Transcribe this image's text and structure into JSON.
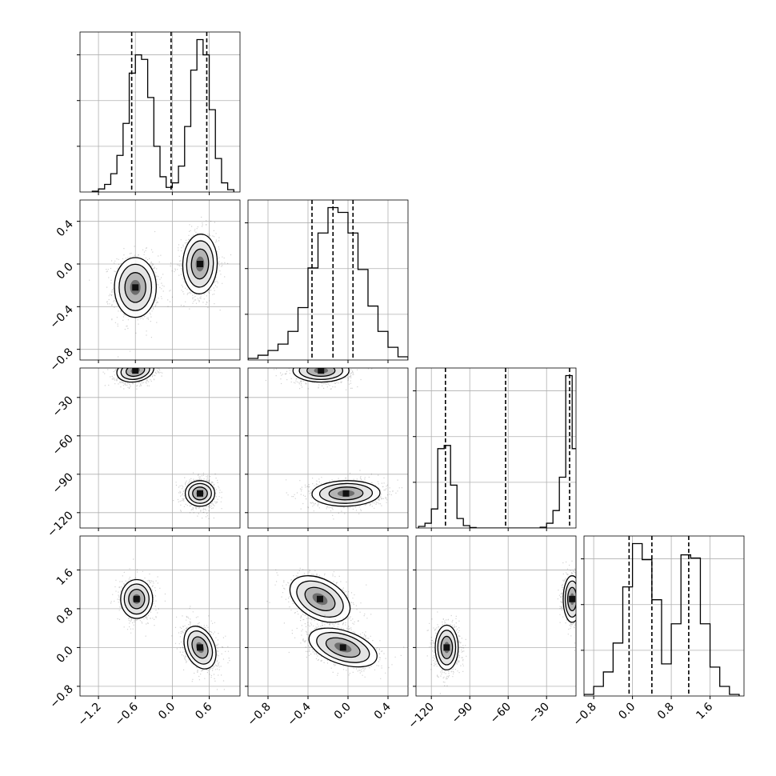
{
  "chart_data": {
    "type": "corner",
    "parameters": 4,
    "colors": {
      "line": "#000000",
      "grid": "#b0b0b0",
      "points": "#000000",
      "background": "#ffffff"
    },
    "grid": true,
    "diagonal": [
      {
        "type": "histogram",
        "x_range": [
          -1.5,
          1.1
        ],
        "y_ticks_shown": 3,
        "quantile_lines": [
          -0.66,
          -0.02,
          0.56
        ],
        "bins": [
          {
            "x": -1.25,
            "count": 0.005
          },
          {
            "x": -1.15,
            "count": 0.02
          },
          {
            "x": -1.05,
            "count": 0.05
          },
          {
            "x": -0.95,
            "count": 0.12
          },
          {
            "x": -0.85,
            "count": 0.24
          },
          {
            "x": -0.75,
            "count": 0.45
          },
          {
            "x": -0.65,
            "count": 0.78
          },
          {
            "x": -0.55,
            "count": 0.9
          },
          {
            "x": -0.45,
            "count": 0.87
          },
          {
            "x": -0.35,
            "count": 0.62
          },
          {
            "x": -0.25,
            "count": 0.3
          },
          {
            "x": -0.15,
            "count": 0.1
          },
          {
            "x": -0.05,
            "count": 0.03
          },
          {
            "x": 0.05,
            "count": 0.06
          },
          {
            "x": 0.15,
            "count": 0.17
          },
          {
            "x": 0.25,
            "count": 0.43
          },
          {
            "x": 0.35,
            "count": 0.8
          },
          {
            "x": 0.45,
            "count": 1.0
          },
          {
            "x": 0.55,
            "count": 0.9
          },
          {
            "x": 0.65,
            "count": 0.54
          },
          {
            "x": 0.75,
            "count": 0.22
          },
          {
            "x": 0.85,
            "count": 0.06
          },
          {
            "x": 0.95,
            "count": 0.015
          }
        ]
      },
      {
        "type": "histogram",
        "x_range": [
          -1.0,
          0.6
        ],
        "x_ticks": [
          -0.8,
          -0.4,
          0.0,
          0.4
        ],
        "x_tick_labels": [
          "−0.8",
          "−0.4",
          "0.0",
          "0.4"
        ],
        "y_ticks_shown": 3,
        "quantile_lines": [
          -0.36,
          -0.15,
          0.05
        ],
        "bins": [
          {
            "x": -0.95,
            "count": 0.01
          },
          {
            "x": -0.85,
            "count": 0.03
          },
          {
            "x": -0.75,
            "count": 0.06
          },
          {
            "x": -0.65,
            "count": 0.1
          },
          {
            "x": -0.55,
            "count": 0.18
          },
          {
            "x": -0.45,
            "count": 0.33
          },
          {
            "x": -0.35,
            "count": 0.58
          },
          {
            "x": -0.25,
            "count": 0.8
          },
          {
            "x": -0.15,
            "count": 0.96
          },
          {
            "x": -0.05,
            "count": 0.93
          },
          {
            "x": 0.05,
            "count": 0.8
          },
          {
            "x": 0.15,
            "count": 0.57
          },
          {
            "x": 0.25,
            "count": 0.34
          },
          {
            "x": 0.35,
            "count": 0.18
          },
          {
            "x": 0.45,
            "count": 0.08
          },
          {
            "x": 0.55,
            "count": 0.02
          }
        ]
      },
      {
        "type": "histogram",
        "x_range": [
          -132,
          -7
        ],
        "x_ticks": [
          -120,
          -90,
          -60,
          -30
        ],
        "x_tick_labels": [
          "−120",
          "−90",
          "−60",
          "−30"
        ],
        "y_ticks_shown": 3,
        "quantile_lines": [
          -109,
          -62,
          -12
        ],
        "bins": [
          {
            "x": -127.5,
            "count": 0.01
          },
          {
            "x": -122.5,
            "count": 0.03
          },
          {
            "x": -117.5,
            "count": 0.12
          },
          {
            "x": -112.5,
            "count": 0.5
          },
          {
            "x": -107.5,
            "count": 0.52
          },
          {
            "x": -102.5,
            "count": 0.27
          },
          {
            "x": -97.5,
            "count": 0.06
          },
          {
            "x": -92.5,
            "count": 0.015
          },
          {
            "x": -87.5,
            "count": 0.003
          },
          {
            "x": -32.5,
            "count": 0.005
          },
          {
            "x": -27.5,
            "count": 0.03
          },
          {
            "x": -22.5,
            "count": 0.11
          },
          {
            "x": -17.5,
            "count": 0.32
          },
          {
            "x": -12.5,
            "count": 0.96
          },
          {
            "x": -7.5,
            "count": 0.5
          }
        ]
      },
      {
        "type": "histogram",
        "x_range": [
          -1.0,
          2.3
        ],
        "x_ticks": [
          -0.8,
          0.0,
          0.8,
          1.6
        ],
        "x_tick_labels": [
          "−0.8",
          "0.0",
          "0.8",
          "1.6"
        ],
        "y_ticks_shown": 3,
        "quantile_lines": [
          -0.07,
          0.4,
          1.16
        ],
        "bins": [
          {
            "x": -0.9,
            "count": 0.01
          },
          {
            "x": -0.7,
            "count": 0.06
          },
          {
            "x": -0.5,
            "count": 0.15
          },
          {
            "x": -0.3,
            "count": 0.33
          },
          {
            "x": -0.1,
            "count": 0.68
          },
          {
            "x": 0.1,
            "count": 0.95
          },
          {
            "x": 0.3,
            "count": 0.85
          },
          {
            "x": 0.5,
            "count": 0.6
          },
          {
            "x": 0.7,
            "count": 0.2
          },
          {
            "x": 0.9,
            "count": 0.45
          },
          {
            "x": 1.1,
            "count": 0.88
          },
          {
            "x": 1.3,
            "count": 0.86
          },
          {
            "x": 1.5,
            "count": 0.45
          },
          {
            "x": 1.7,
            "count": 0.18
          },
          {
            "x": 1.9,
            "count": 0.06
          },
          {
            "x": 2.1,
            "count": 0.01
          }
        ]
      }
    ],
    "pairs": [
      {
        "row": 1,
        "col": 0,
        "x_range": [
          -1.5,
          1.1
        ],
        "y_range": [
          -0.9,
          0.6
        ],
        "y_ticks": [
          -0.8,
          -0.4,
          0.0,
          0.4
        ],
        "y_tick_labels": [
          "−0.8",
          "−0.4",
          "0.0",
          "0.4"
        ],
        "clusters": [
          {
            "cx": -0.6,
            "cy": -0.22,
            "sx": 0.17,
            "sy": 0.14,
            "rho": 0.0
          },
          {
            "cx": 0.45,
            "cy": 0.0,
            "sx": 0.14,
            "sy": 0.14,
            "rho": 0.05
          }
        ]
      },
      {
        "row": 2,
        "col": 0,
        "x_range": [
          -1.5,
          1.1
        ],
        "y_range": [
          -132,
          -7
        ],
        "y_ticks": [
          -120,
          -90,
          -60,
          -30
        ],
        "y_tick_labels": [
          "−120",
          "−90",
          "−60",
          "−30"
        ],
        "clusters": [
          {
            "cx": -0.6,
            "cy": -9,
            "sx": 0.15,
            "sy": 4.5,
            "rho": 0.2
          },
          {
            "cx": 0.45,
            "cy": -105,
            "sx": 0.12,
            "sy": 5,
            "rho": 0.0
          }
        ]
      },
      {
        "row": 2,
        "col": 1,
        "x_range": [
          -1.0,
          0.6
        ],
        "y_range": [
          -132,
          -7
        ],
        "clusters": [
          {
            "cx": -0.27,
            "cy": -9,
            "sx": 0.14,
            "sy": 4.5,
            "rho": 0.0
          },
          {
            "cx": -0.02,
            "cy": -105,
            "sx": 0.17,
            "sy": 5,
            "rho": 0.05
          }
        ]
      },
      {
        "row": 3,
        "col": 0,
        "x_range": [
          -1.5,
          1.1
        ],
        "y_range": [
          -1.0,
          2.3
        ],
        "y_ticks": [
          -0.8,
          0.0,
          0.8,
          1.6
        ],
        "y_tick_labels": [
          "−0.8",
          "0.0",
          "0.8",
          "1.6"
        ],
        "x_ticks": [
          -1.2,
          -0.6,
          0.0,
          0.6
        ],
        "x_tick_labels": [
          "−1.2",
          "−0.6",
          "0.0",
          "0.6"
        ],
        "clusters": [
          {
            "cx": -0.58,
            "cy": 1.0,
            "sx": 0.13,
            "sy": 0.2,
            "rho": 0.0
          },
          {
            "cx": 0.45,
            "cy": 0.0,
            "sx": 0.13,
            "sy": 0.22,
            "rho": -0.3
          }
        ]
      },
      {
        "row": 3,
        "col": 1,
        "x_range": [
          -1.0,
          0.6
        ],
        "y_range": [
          -1.0,
          2.3
        ],
        "clusters": [
          {
            "cx": -0.28,
            "cy": 1.0,
            "sx": 0.15,
            "sy": 0.24,
            "rho": -0.4
          },
          {
            "cx": -0.05,
            "cy": 0.0,
            "sx": 0.17,
            "sy": 0.2,
            "rho": -0.45
          }
        ]
      },
      {
        "row": 3,
        "col": 2,
        "x_range": [
          -132,
          -7
        ],
        "y_range": [
          -1.0,
          2.3
        ],
        "clusters": [
          {
            "cx": -108,
            "cy": 0.0,
            "sx": 4.5,
            "sy": 0.23,
            "rho": 0.0
          },
          {
            "cx": -10,
            "cy": 1.0,
            "sx": 3.5,
            "sy": 0.24,
            "rho": 0.0
          }
        ]
      }
    ]
  }
}
